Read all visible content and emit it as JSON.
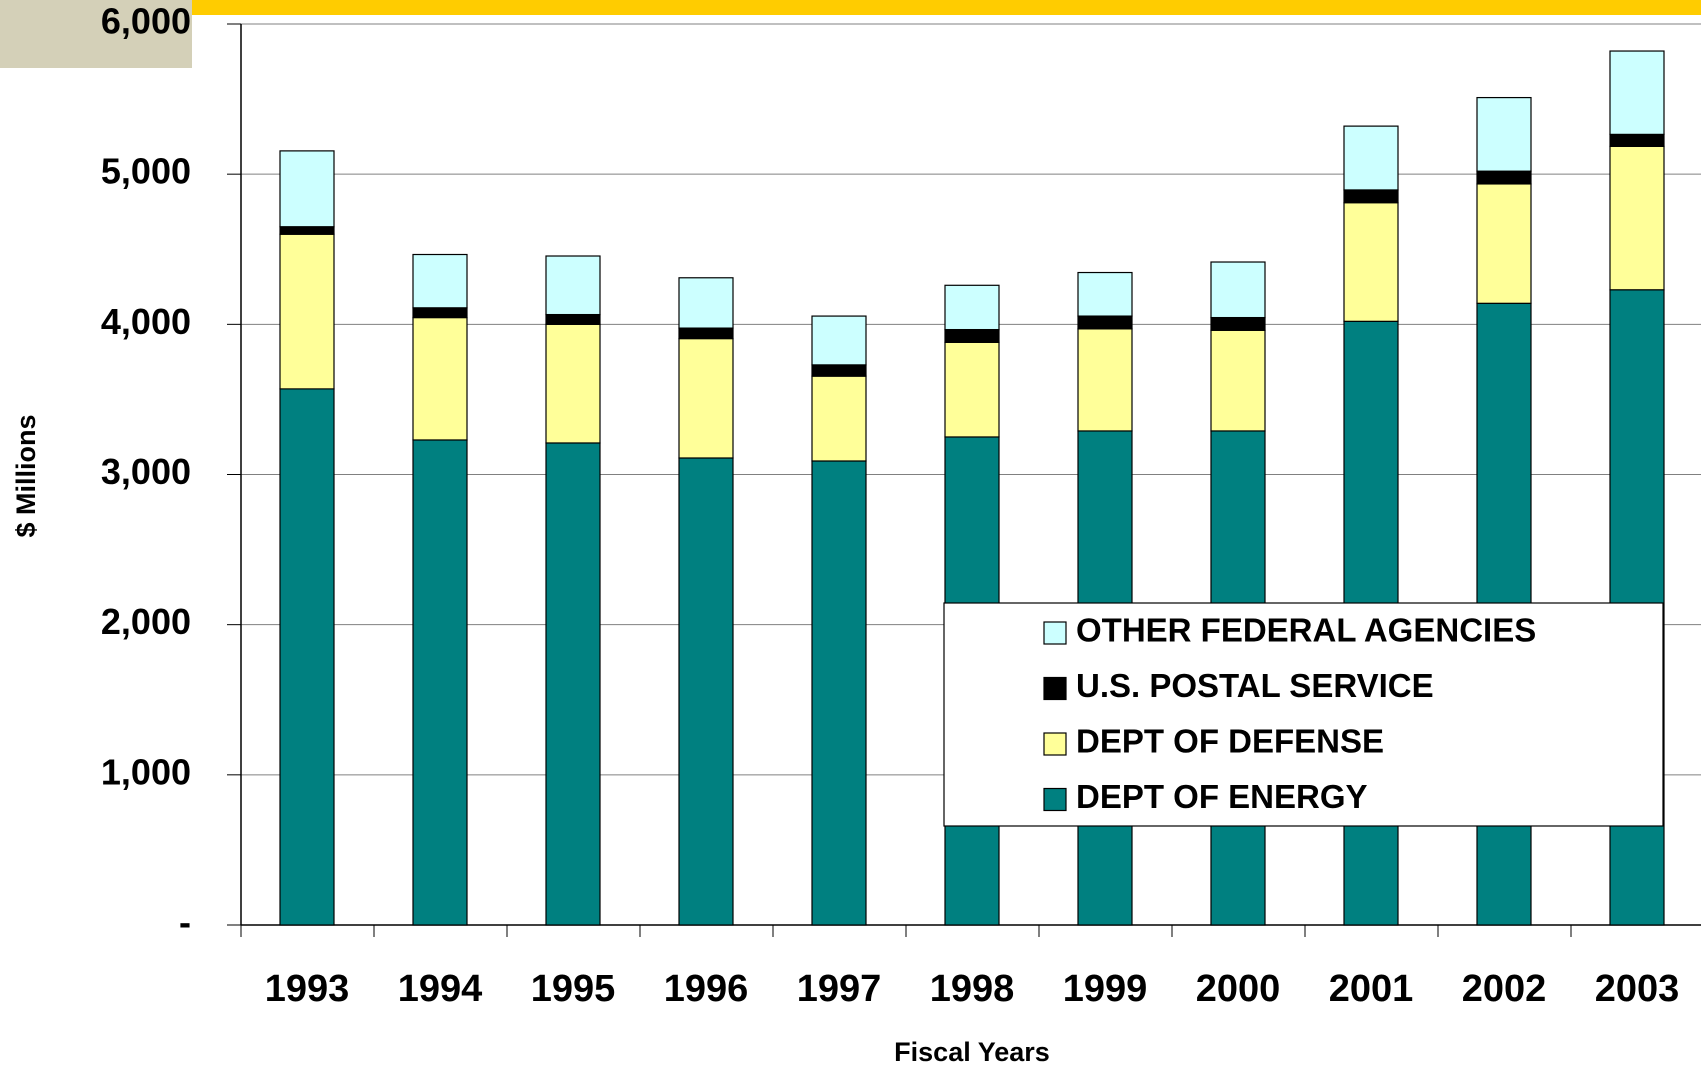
{
  "chart_data": {
    "type": "stacked_bar",
    "x_label": "Fiscal Years",
    "y_label": "$ Millions",
    "categories": [
      "1993",
      "1994",
      "1995",
      "1996",
      "1997",
      "1998",
      "1999",
      "2000",
      "2001",
      "2002",
      "2003"
    ],
    "series": [
      {
        "name": "DEPT OF ENERGY",
        "color": "#008080",
        "values": [
          3570,
          3230,
          3210,
          3110,
          3090,
          3250,
          3290,
          3290,
          4020,
          4140,
          4230
        ]
      },
      {
        "name": "DEPT OF DEFENSE",
        "color": "#ffff99",
        "values": [
          1030,
          815,
          790,
          795,
          565,
          630,
          680,
          670,
          790,
          795,
          955
        ]
      },
      {
        "name": "U.S. POSTAL SERVICE",
        "color": "#000000",
        "values": [
          50,
          65,
          65,
          70,
          75,
          85,
          85,
          85,
          85,
          85,
          80
        ]
      },
      {
        "name": "OTHER FEDERAL AGENCIES",
        "color": "#ccffff",
        "values": [
          505,
          355,
          390,
          335,
          325,
          295,
          290,
          370,
          425,
          490,
          555
        ]
      }
    ],
    "ylim": [
      0,
      6000
    ],
    "yticks": [
      {
        "value": 0,
        "label": "-"
      },
      {
        "value": 1000,
        "label": "1,000"
      },
      {
        "value": 2000,
        "label": "2,000"
      },
      {
        "value": 3000,
        "label": "3,000"
      },
      {
        "value": 4000,
        "label": "4,000"
      },
      {
        "value": 5000,
        "label": "5,000"
      },
      {
        "value": 6000,
        "label": "6,000"
      }
    ],
    "grid": true,
    "legend": "lower right"
  }
}
